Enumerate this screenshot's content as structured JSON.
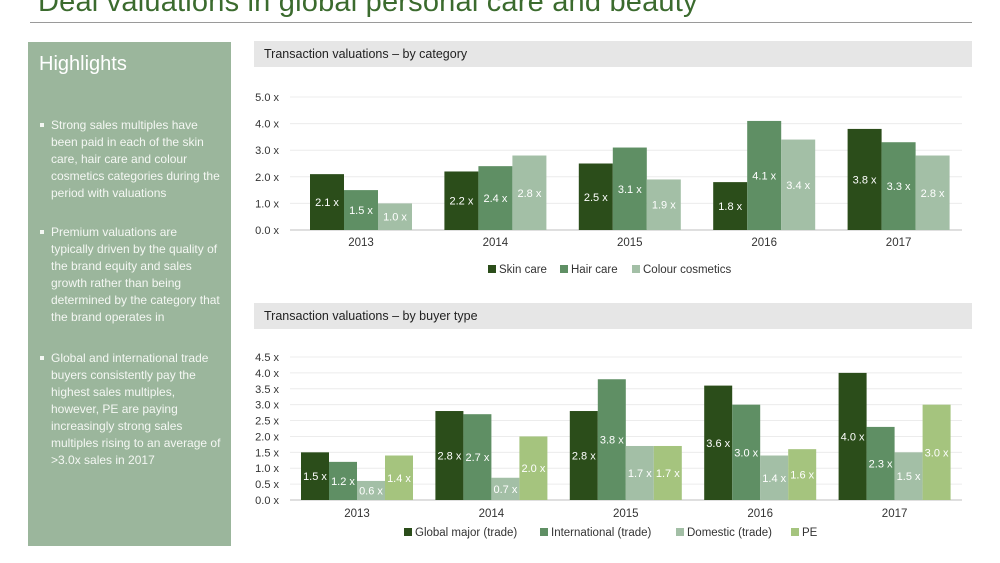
{
  "page": {
    "title": "Deal valuations in global personal care and beauty"
  },
  "highlights": {
    "heading": "Highlights",
    "bullets": [
      "Strong sales multiples have been paid in each of the skin care, hair care and colour cosmetics categories during the period with valuations",
      "Premium valuations are typically driven by the quality of the brand equity and sales growth rather than being determined by the category that the brand operates in",
      "Global and international trade buyers consistently pay the highest sales multiples, however, PE are paying increasingly strong sales multiples rising to an average of >3.0x sales in 2017"
    ]
  },
  "chart_data": [
    {
      "type": "bar",
      "title": "Transaction valuations – by category",
      "categories": [
        "2013",
        "2014",
        "2015",
        "2016",
        "2017"
      ],
      "ylim": [
        0,
        5
      ],
      "yticks": [
        "0.0 x",
        "1.0 x",
        "2.0 x",
        "3.0 x",
        "4.0 x",
        "5.0 x"
      ],
      "value_suffix": " x",
      "grid": true,
      "legend_position": "bottom",
      "series": [
        {
          "name": "Skin care",
          "color": "#2b4d1a",
          "values": [
            2.1,
            2.2,
            2.5,
            1.8,
            3.8
          ]
        },
        {
          "name": "Hair care",
          "color": "#5f8f64",
          "values": [
            1.5,
            2.4,
            3.1,
            4.1,
            3.3
          ]
        },
        {
          "name": "Colour cosmetics",
          "color": "#a3bfa6",
          "values": [
            1.0,
            2.8,
            1.9,
            3.4,
            2.8
          ]
        }
      ]
    },
    {
      "type": "bar",
      "title": "Transaction valuations – by buyer type",
      "categories": [
        "2013",
        "2014",
        "2015",
        "2016",
        "2017"
      ],
      "ylim": [
        0,
        4.5
      ],
      "yticks": [
        "0.0 x",
        "0.5 x",
        "1.0 x",
        "1.5 x",
        "2.0 x",
        "2.5 x",
        "3.0 x",
        "3.5 x",
        "4.0 x",
        "4.5 x"
      ],
      "value_suffix": " x",
      "grid": true,
      "legend_position": "bottom",
      "series": [
        {
          "name": "Global major (trade)",
          "color": "#2b4d1a",
          "values": [
            1.5,
            2.8,
            2.8,
            3.6,
            4.0
          ]
        },
        {
          "name": "International (trade)",
          "color": "#5f8f64",
          "values": [
            1.2,
            2.7,
            3.8,
            3.0,
            2.3
          ]
        },
        {
          "name": "Domestic (trade)",
          "color": "#a3bfa6",
          "values": [
            0.6,
            0.7,
            1.7,
            1.4,
            1.5
          ]
        },
        {
          "name": "PE",
          "color": "#a5c47e",
          "values": [
            1.4,
            2.0,
            1.7,
            1.6,
            3.0
          ]
        }
      ]
    }
  ]
}
